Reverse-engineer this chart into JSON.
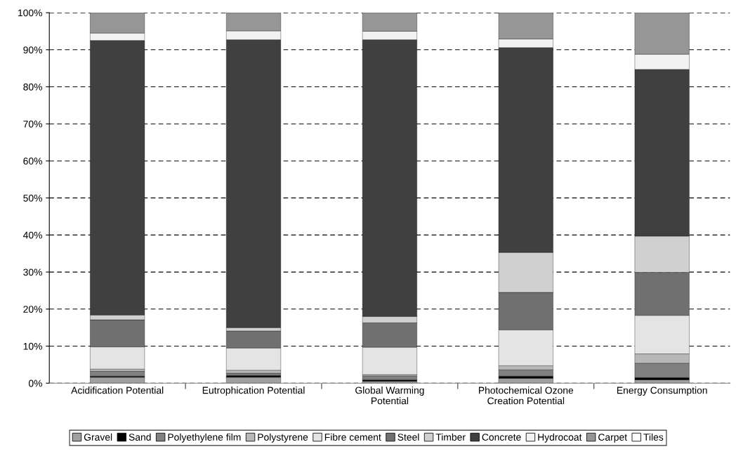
{
  "chart_data": {
    "type": "bar",
    "stacked": true,
    "categories": [
      "Acidification Potential",
      "Eutrophication Potential",
      "Global Warming\nPotential",
      "Photochemical Ozone\nCreation Potential",
      "Energy Consumption"
    ],
    "series": [
      {
        "name": "Gravel",
        "color": "#a0a0a0",
        "values": [
          1.6,
          1.6,
          0.5,
          1.3,
          0.9
        ]
      },
      {
        "name": "Sand",
        "color": "#000000",
        "values": [
          0.3,
          0.5,
          0.4,
          0.6,
          0.6
        ]
      },
      {
        "name": "Polyethylene film",
        "color": "#808080",
        "values": [
          1.3,
          0.6,
          1.0,
          1.7,
          3.9
        ]
      },
      {
        "name": "Polystyrene",
        "color": "#b8b8b8",
        "values": [
          0.6,
          0.8,
          0.4,
          1.1,
          2.5
        ]
      },
      {
        "name": "Fibre cement",
        "color": "#e4e4e4",
        "values": [
          6.0,
          6.0,
          7.4,
          9.7,
          10.4
        ]
      },
      {
        "name": "Steel",
        "color": "#707070",
        "values": [
          7.3,
          4.6,
          6.6,
          10.1,
          11.6
        ]
      },
      {
        "name": "Timber",
        "color": "#d0d0d0",
        "values": [
          1.3,
          0.9,
          1.7,
          10.8,
          9.8
        ]
      },
      {
        "name": "Concrete",
        "color": "#404040",
        "values": [
          74.1,
          77.7,
          74.7,
          55.3,
          45.0
        ]
      },
      {
        "name": "Hydrocoat",
        "color": "#f2f2f2",
        "values": [
          2.0,
          2.4,
          2.3,
          2.3,
          4.1
        ]
      },
      {
        "name": "Carpet",
        "color": "#969696",
        "values": [
          5.5,
          4.9,
          5.0,
          7.1,
          11.2
        ]
      },
      {
        "name": "Tiles",
        "color": "#ffffff",
        "values": [
          0,
          0,
          0,
          0,
          0
        ]
      }
    ],
    "ylim": [
      0,
      100
    ],
    "yticks": [
      {
        "value": 0,
        "label": "0%"
      },
      {
        "value": 10,
        "label": "10%"
      },
      {
        "value": 20,
        "label": "20%"
      },
      {
        "value": 30,
        "label": "30%"
      },
      {
        "value": 40,
        "label": "40%"
      },
      {
        "value": 50,
        "label": "50%"
      },
      {
        "value": 60,
        "label": "60%"
      },
      {
        "value": 70,
        "label": "70%"
      },
      {
        "value": 80,
        "label": "80%"
      },
      {
        "value": 90,
        "label": "90%"
      },
      {
        "value": 100,
        "label": "100%"
      }
    ],
    "grid": "y",
    "legend": "bottom"
  }
}
